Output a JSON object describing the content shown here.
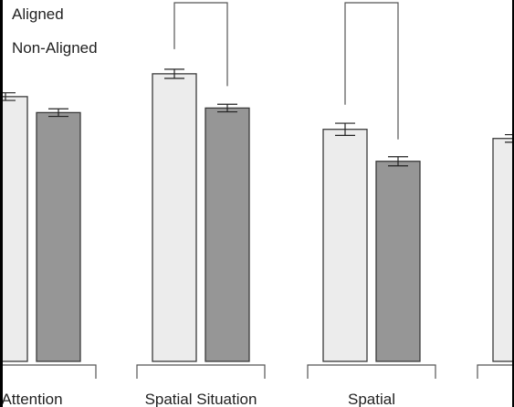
{
  "colors": {
    "aligned_fill": "#ececec",
    "non_aligned_fill": "#969696",
    "bar_stroke": "#3a3a3a",
    "line": "#555555",
    "text": "#222222"
  },
  "legend": {
    "items": [
      {
        "label": "Aligned"
      },
      {
        "label": "Non-Aligned"
      }
    ]
  },
  "chart_data": {
    "type": "bar",
    "categories": [
      "Attention",
      "Spatial Situation",
      "Spatial",
      ""
    ],
    "series": [
      {
        "name": "Aligned",
        "values": [
          3.48,
          3.78,
          3.05,
          2.93
        ],
        "errors": [
          0.05,
          0.06,
          0.08,
          0.05
        ]
      },
      {
        "name": "Non-Aligned",
        "values": [
          3.27,
          3.33,
          2.63,
          null
        ],
        "errors": [
          0.05,
          0.05,
          0.06,
          null
        ]
      }
    ],
    "ylim": [
      0,
      4.75
    ],
    "comparison_brackets": [
      {
        "category": 1
      },
      {
        "category": 2
      }
    ],
    "legend_position": "top-left",
    "grid": false
  }
}
